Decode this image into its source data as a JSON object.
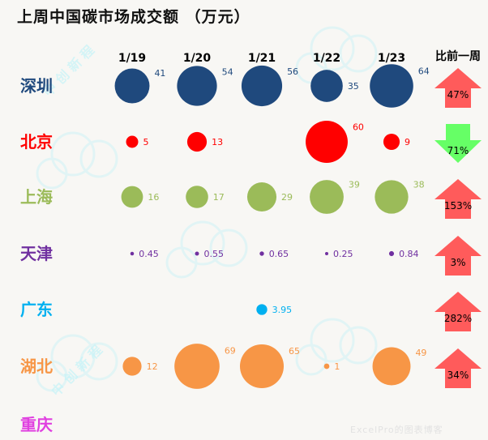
{
  "title": "上周中国碳市场成交额 （万元）",
  "watermark": "中 创 新 程",
  "footer_mark": "ExcelPro的图表博客",
  "chart_data": {
    "type": "bubble-matrix",
    "title": "上周中国碳市场成交额 （万元）",
    "dates": [
      "1/19",
      "1/20",
      "1/21",
      "1/22",
      "1/23"
    ],
    "change_header": "比前一周",
    "rows": [
      {
        "name": "深圳",
        "color": "#1f497d",
        "values": [
          41,
          54,
          56,
          35,
          64
        ],
        "labels": [
          "41",
          "54",
          "56",
          "35",
          "64"
        ],
        "change": "47%",
        "direction": "up"
      },
      {
        "name": "北京",
        "color": "#ff0000",
        "values": [
          5,
          13,
          null,
          60,
          9
        ],
        "labels": [
          "5",
          "13",
          "",
          "60",
          "9"
        ],
        "change": "71%",
        "direction": "down"
      },
      {
        "name": "上海",
        "color": "#9bbb59",
        "values": [
          16,
          17,
          29,
          39,
          38
        ],
        "labels": [
          "16",
          "17",
          "29",
          "39",
          "38"
        ],
        "change": "153%",
        "direction": "up"
      },
      {
        "name": "天津",
        "color": "#7030a0",
        "values": [
          0.45,
          0.55,
          0.65,
          0.25,
          0.84
        ],
        "labels": [
          "0.45",
          "0.55",
          "0.65",
          "0.25",
          "0.84"
        ],
        "change": "3%",
        "direction": "up"
      },
      {
        "name": "广东",
        "color": "#00b0f0",
        "values": [
          null,
          null,
          3.95,
          null,
          null
        ],
        "labels": [
          "",
          "",
          "3.95",
          "",
          ""
        ],
        "change": "282%",
        "direction": "up"
      },
      {
        "name": "湖北",
        "color": "#f79646",
        "values": [
          12,
          69,
          65,
          1,
          49
        ],
        "labels": [
          "12",
          "69",
          "65",
          "1",
          "49"
        ],
        "change": "34%",
        "direction": "up"
      },
      {
        "name": "重庆",
        "color": "#e040e0",
        "values": [
          null,
          null,
          null,
          null,
          null
        ],
        "labels": [
          "",
          "",
          "",
          "",
          ""
        ],
        "change": "",
        "direction": ""
      }
    ],
    "arrow_colors": {
      "up": "#ff5b5b",
      "down": "#66ff66"
    },
    "legend": "none",
    "grid": false
  }
}
